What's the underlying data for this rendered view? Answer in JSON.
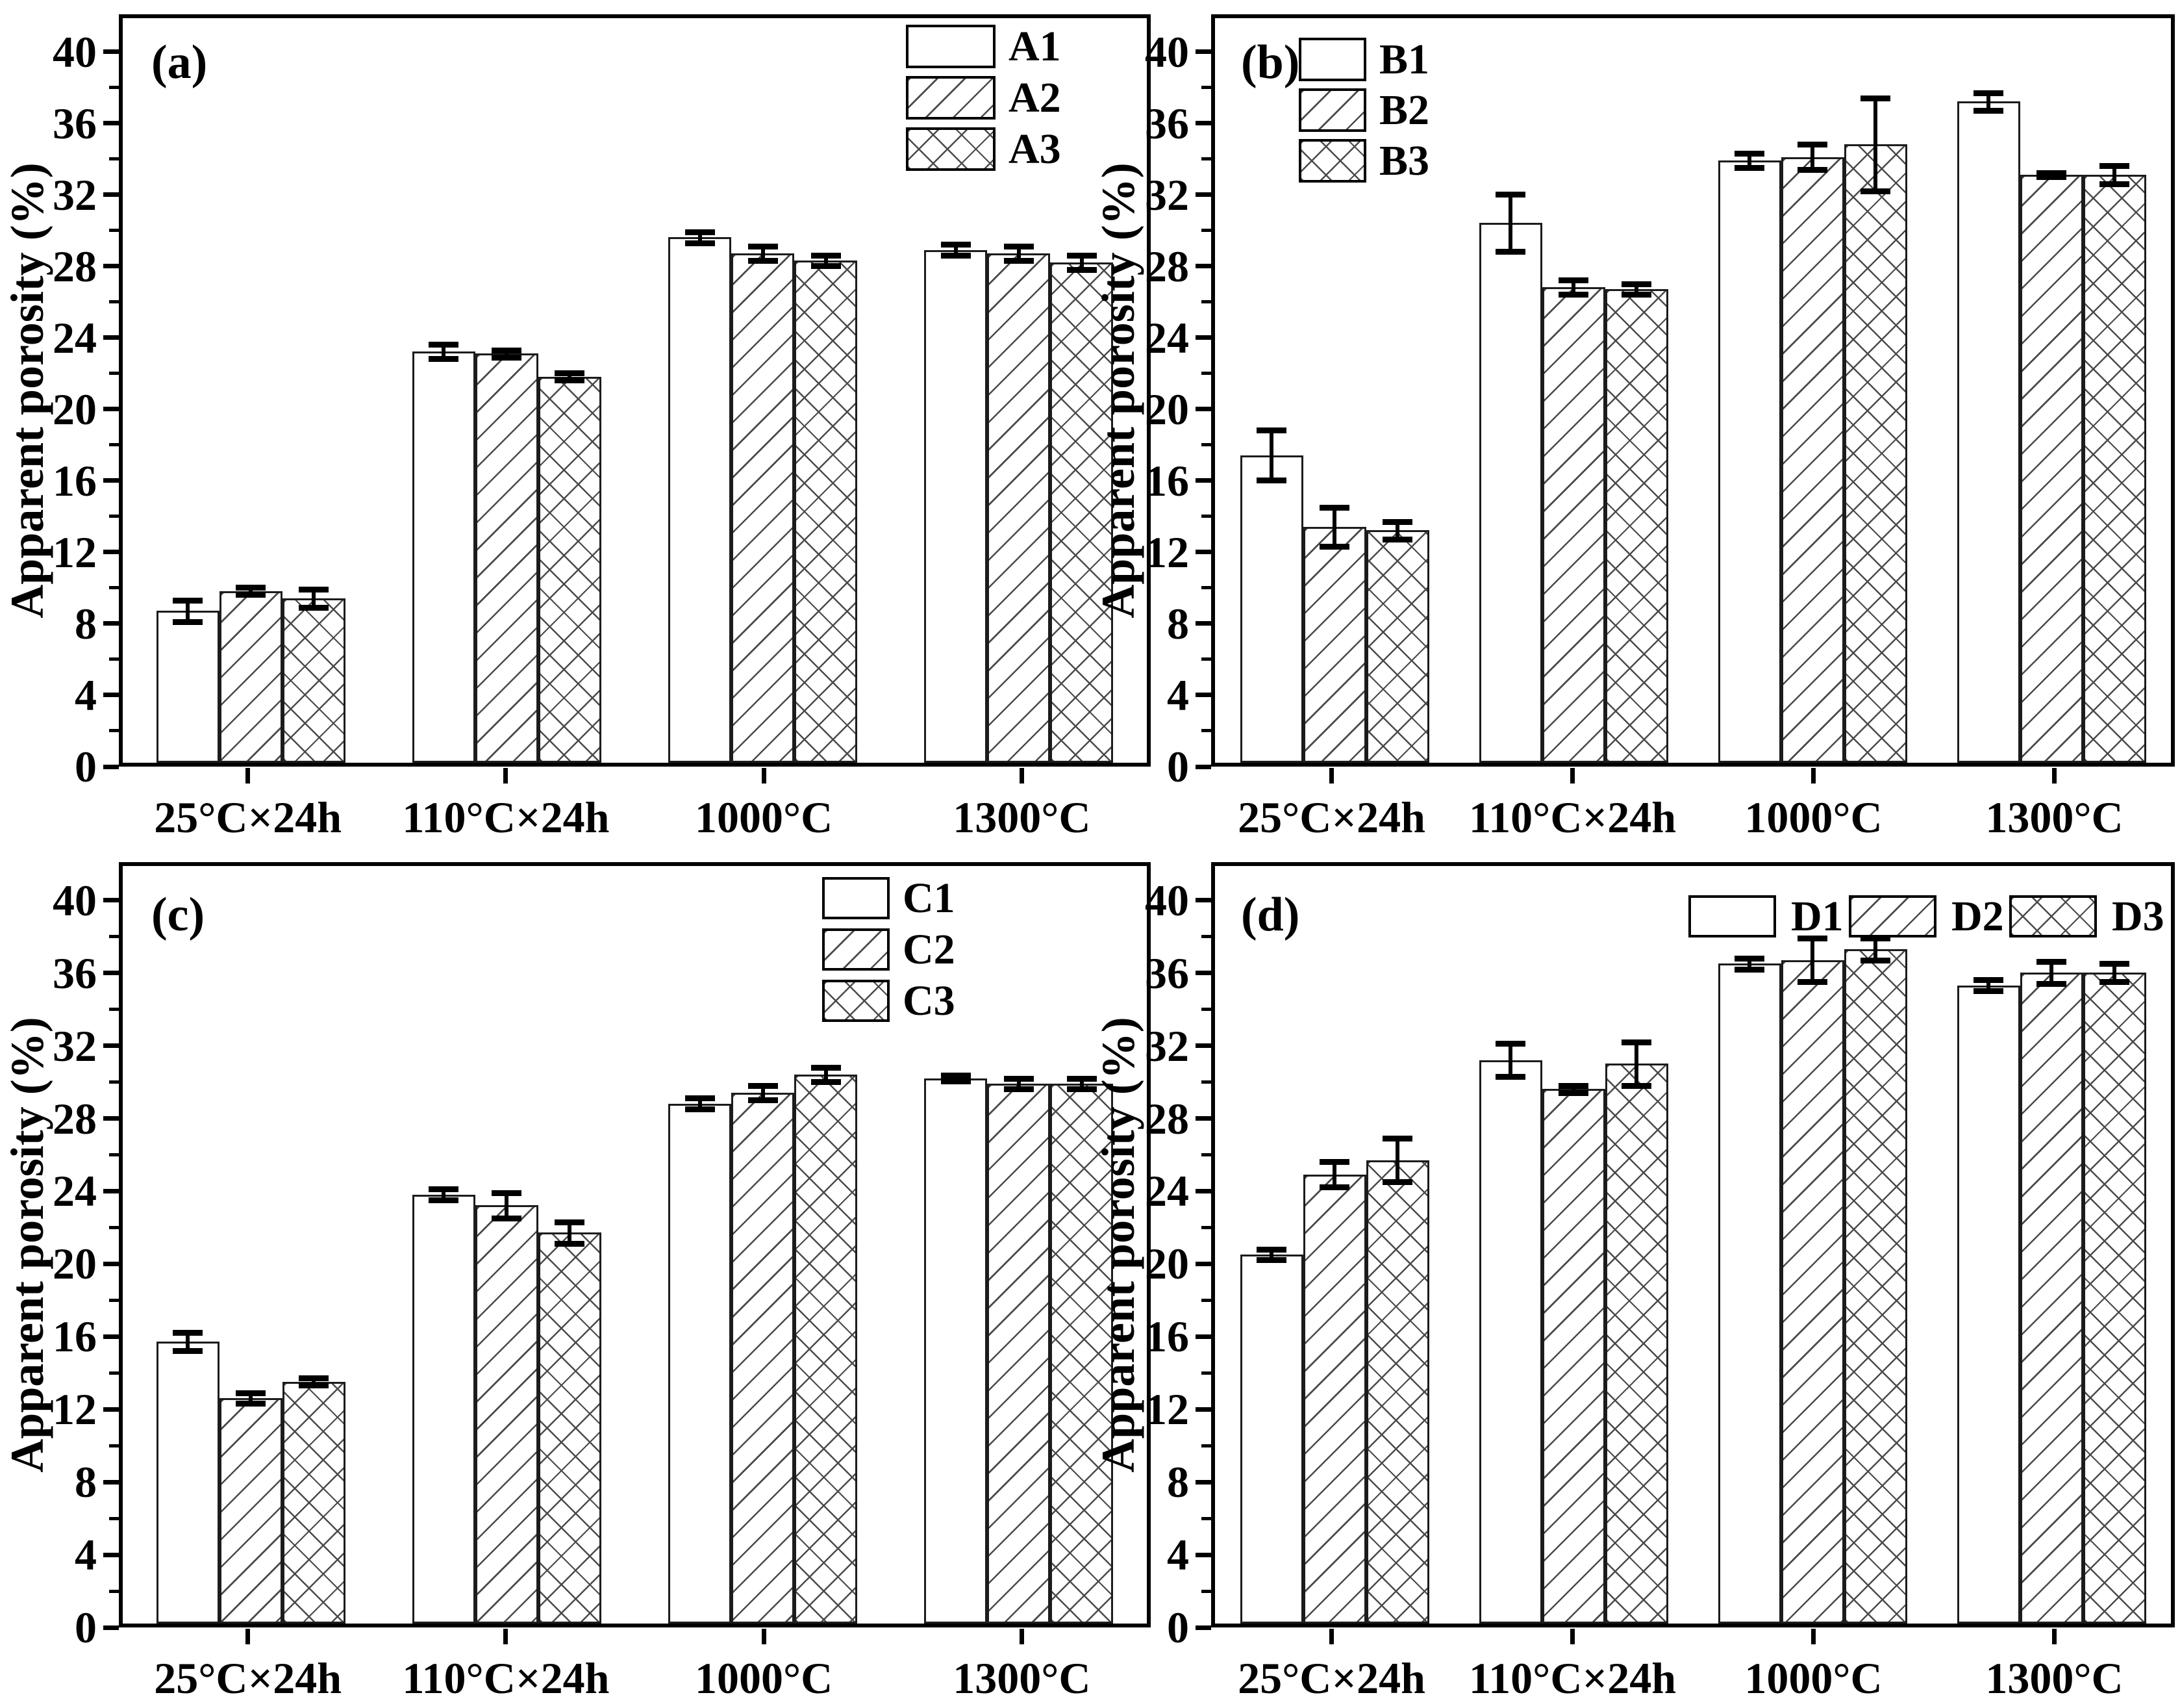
{
  "figure": {
    "ylabel": "Apparent porosity (%)",
    "categories": [
      "25°C×24h",
      "110°C×24h",
      "1000°C",
      "1300°C"
    ],
    "colors": {
      "ink": "#000000",
      "hatch": "#4a4a4a",
      "bar_fill": "#ffffff",
      "bar_border": "#1c1c1c"
    }
  },
  "chart_data": [
    {
      "type": "bar",
      "panel_label": "(a)",
      "ylabel": "Apparent porosity (%)",
      "xlabel": "",
      "title": "",
      "categories": [
        "25°C×24h",
        "110°C×24h",
        "1000°C",
        "1300°C"
      ],
      "ylim": [
        0,
        42
      ],
      "yticks": [
        0,
        4,
        8,
        12,
        16,
        20,
        24,
        28,
        32,
        36,
        40
      ],
      "grid": false,
      "legend": {
        "layout": "vertical",
        "position": "top-right"
      },
      "series": [
        {
          "name": "A1",
          "pattern": "plain",
          "values": [
            8.5,
            23.0,
            29.4,
            28.7
          ],
          "errors": [
            0.6,
            0.4,
            0.3,
            0.3
          ]
        },
        {
          "name": "A2",
          "pattern": "diagonal",
          "values": [
            9.6,
            22.9,
            28.5,
            28.5
          ],
          "errors": [
            0.2,
            0.2,
            0.4,
            0.4
          ]
        },
        {
          "name": "A3",
          "pattern": "crosshatch",
          "values": [
            9.2,
            21.6,
            28.1,
            28.0
          ],
          "errors": [
            0.5,
            0.2,
            0.3,
            0.4
          ]
        }
      ]
    },
    {
      "type": "bar",
      "panel_label": "(b)",
      "ylabel": "Apparent porosity (%)",
      "xlabel": "",
      "title": "",
      "categories": [
        "25°C×24h",
        "110°C×24h",
        "1000°C",
        "1300°C"
      ],
      "ylim": [
        0,
        42
      ],
      "yticks": [
        0,
        4,
        8,
        12,
        16,
        20,
        24,
        28,
        32,
        36,
        40
      ],
      "grid": false,
      "legend": {
        "layout": "vertical",
        "position": "top-left"
      },
      "series": [
        {
          "name": "B1",
          "pattern": "plain",
          "values": [
            17.2,
            30.2,
            33.7,
            37.0
          ],
          "errors": [
            1.4,
            1.6,
            0.4,
            0.5
          ]
        },
        {
          "name": "B2",
          "pattern": "diagonal",
          "values": [
            13.2,
            26.6,
            33.9,
            32.9
          ],
          "errors": [
            1.1,
            0.4,
            0.7,
            0.1
          ]
        },
        {
          "name": "B3",
          "pattern": "crosshatch",
          "values": [
            13.0,
            26.5,
            34.6,
            32.9
          ],
          "errors": [
            0.5,
            0.3,
            2.6,
            0.5
          ]
        }
      ]
    },
    {
      "type": "bar",
      "panel_label": "(c)",
      "ylabel": "Apparent porosity (%)",
      "xlabel": "",
      "title": "",
      "categories": [
        "25°C×24h",
        "110°C×24h",
        "1000°C",
        "1300°C"
      ],
      "ylim": [
        0,
        42
      ],
      "yticks": [
        0,
        4,
        8,
        12,
        16,
        20,
        24,
        28,
        32,
        36,
        40
      ],
      "grid": false,
      "legend": {
        "layout": "vertical",
        "position": "top-right"
      },
      "series": [
        {
          "name": "C1",
          "pattern": "plain",
          "values": [
            15.5,
            23.6,
            28.6,
            30.0
          ],
          "errors": [
            0.5,
            0.3,
            0.3,
            0.15
          ]
        },
        {
          "name": "C2",
          "pattern": "diagonal",
          "values": [
            12.4,
            23.0,
            29.2,
            29.7
          ],
          "errors": [
            0.3,
            0.7,
            0.4,
            0.3
          ]
        },
        {
          "name": "C3",
          "pattern": "crosshatch",
          "values": [
            13.3,
            21.5,
            30.2,
            29.7
          ],
          "errors": [
            0.2,
            0.6,
            0.4,
            0.3
          ]
        }
      ]
    },
    {
      "type": "bar",
      "panel_label": "(d)",
      "ylabel": "Apparent porosity (%)",
      "xlabel": "",
      "title": "",
      "categories": [
        "25°C×24h",
        "110°C×24h",
        "1000°C",
        "1300°C"
      ],
      "ylim": [
        0,
        42
      ],
      "yticks": [
        0,
        4,
        8,
        12,
        16,
        20,
        24,
        28,
        32,
        36,
        40
      ],
      "grid": false,
      "legend": {
        "layout": "horizontal",
        "position": "top-right"
      },
      "series": [
        {
          "name": "D1",
          "pattern": "plain",
          "values": [
            20.3,
            31.0,
            36.3,
            35.1
          ],
          "errors": [
            0.3,
            0.9,
            0.3,
            0.3
          ]
        },
        {
          "name": "D2",
          "pattern": "diagonal",
          "values": [
            24.7,
            29.4,
            36.5,
            35.8
          ],
          "errors": [
            0.7,
            0.2,
            1.2,
            0.6
          ]
        },
        {
          "name": "D3",
          "pattern": "crosshatch",
          "values": [
            25.5,
            30.8,
            37.1,
            35.8
          ],
          "errors": [
            1.2,
            1.2,
            0.6,
            0.5
          ]
        }
      ]
    }
  ]
}
